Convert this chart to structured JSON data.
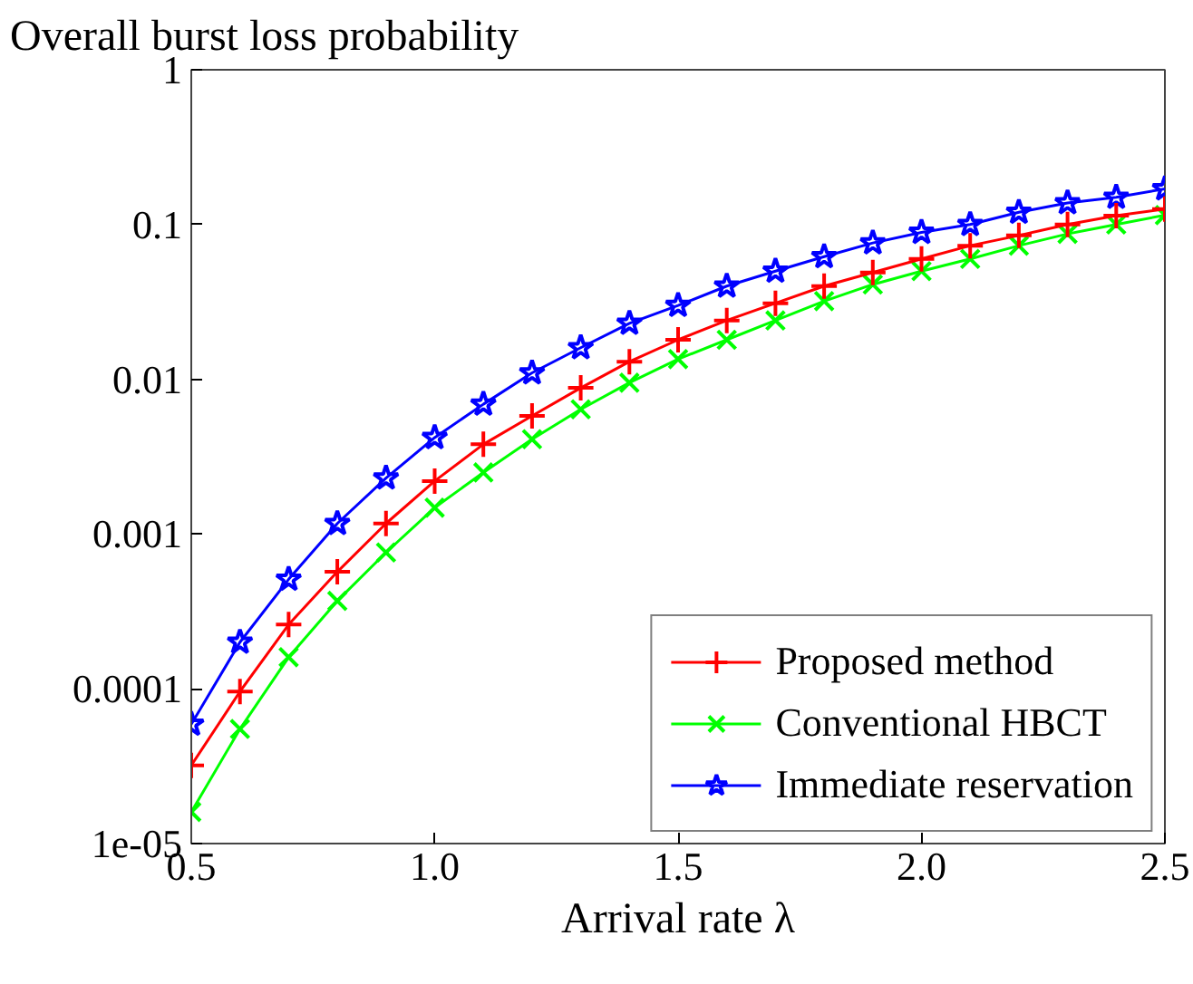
{
  "chart_data": {
    "type": "line",
    "xlabel": "Arrival rate λ",
    "ylabel": "Overall burst loss probability",
    "x": [
      0.5,
      0.6,
      0.7,
      0.8,
      0.9,
      1.0,
      1.1,
      1.2,
      1.3,
      1.4,
      1.5,
      1.6,
      1.7,
      1.8,
      1.9,
      2.0,
      2.1,
      2.2,
      2.3,
      2.4,
      2.5
    ],
    "series": [
      {
        "name": "Proposed method",
        "color": "#ff0000",
        "marker": "cross",
        "values": [
          3.2e-05,
          9.6e-05,
          0.00026,
          0.00057,
          0.00117,
          0.0022,
          0.0038,
          0.0058,
          0.0088,
          0.013,
          0.018,
          0.024,
          0.031,
          0.04,
          0.049,
          0.06,
          0.073,
          0.085,
          0.1,
          0.114,
          0.126
        ]
      },
      {
        "name": "Conventional HBCT",
        "color": "#00ff00",
        "marker": "x",
        "values": [
          1.6e-05,
          5.5e-05,
          0.00016,
          0.00037,
          0.00076,
          0.00148,
          0.0025,
          0.0041,
          0.0064,
          0.0095,
          0.0135,
          0.018,
          0.024,
          0.032,
          0.041,
          0.05,
          0.06,
          0.073,
          0.087,
          0.1,
          0.115
        ]
      },
      {
        "name": "Immediate reservation",
        "color": "#0000ff",
        "marker": "star",
        "values": [
          5.9e-05,
          0.0002,
          0.00051,
          0.00117,
          0.0023,
          0.0042,
          0.0069,
          0.011,
          0.016,
          0.023,
          0.03,
          0.04,
          0.05,
          0.062,
          0.076,
          0.089,
          0.1,
          0.12,
          0.138,
          0.15,
          0.17
        ]
      }
    ],
    "xlim": [
      0.5,
      2.5
    ],
    "ylim": [
      1e-05,
      1
    ],
    "log": "y",
    "xticks": [
      0.5,
      {
        "value": 1.0,
        "label": "1.0"
      },
      1.5,
      {
        "value": 2.0,
        "label": "2.0"
      },
      2.5
    ],
    "yticks": [
      {
        "value": 1e-05,
        "label": "1e-05"
      },
      0.0001,
      0.001,
      0.01,
      0.1,
      1
    ],
    "grid": false,
    "legend": "bottom right",
    "line_style": "solid"
  }
}
